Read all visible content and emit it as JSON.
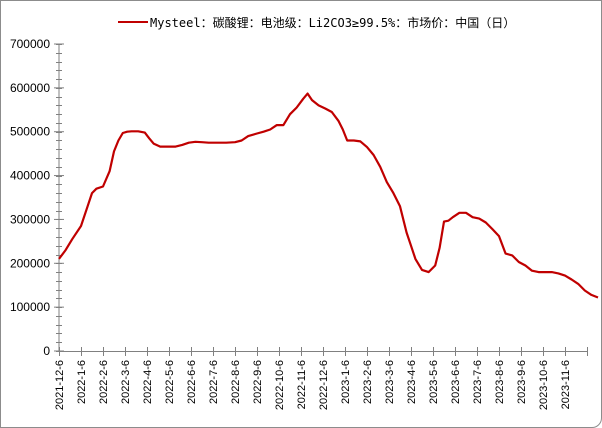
{
  "legend": {
    "label": "Mysteel：碳酸锂：电池级：Li2CO3≥99.5%：市场价：中国（日）",
    "color": "#c00000"
  },
  "chart_data": {
    "type": "line",
    "title": "",
    "xlabel": "",
    "ylabel": "",
    "ylim": [
      0,
      700000
    ],
    "yticks": [
      0,
      100000,
      200000,
      300000,
      400000,
      500000,
      600000,
      700000
    ],
    "ytick_labels": [
      "0",
      "100000",
      "200000",
      "300000",
      "400000",
      "500000",
      "600000",
      "700000"
    ],
    "xtick_labels": [
      "2021-12-6",
      "2022-1-6",
      "2022-2-6",
      "2022-3-6",
      "2022-4-6",
      "2022-5-6",
      "2022-6-6",
      "2022-7-6",
      "2022-8-6",
      "2022-9-6",
      "2022-10-6",
      "2022-11-6",
      "2022-12-6",
      "2023-1-6",
      "2023-2-6",
      "2023-3-6",
      "2023-4-6",
      "2023-5-6",
      "2023-6-6",
      "2023-7-6",
      "2023-8-6",
      "2023-9-6",
      "2023-10-6",
      "2023-11-6"
    ],
    "grid": false,
    "legend_position": "top",
    "series": [
      {
        "name": "Mysteel：碳酸锂：电池级：Li2CO3≥99.5%：市场价：中国（日）",
        "color": "#c00000",
        "x_month_offset": [
          0,
          0.3,
          0.6,
          1.0,
          1.3,
          1.5,
          1.7,
          2.0,
          2.3,
          2.5,
          2.7,
          2.9,
          3.1,
          3.3,
          3.6,
          3.9,
          4.1,
          4.3,
          4.6,
          5.0,
          5.3,
          5.6,
          5.9,
          6.2,
          6.5,
          6.8,
          7.2,
          7.6,
          8.0,
          8.3,
          8.6,
          9.0,
          9.3,
          9.6,
          9.9,
          10.2,
          10.5,
          10.8,
          11.1,
          11.3,
          11.5,
          11.8,
          12.1,
          12.4,
          12.7,
          12.9,
          13.1,
          13.4,
          13.7,
          14.0,
          14.3,
          14.6,
          14.9,
          15.2,
          15.5,
          15.8,
          16.0,
          16.2,
          16.5,
          16.8,
          17.1,
          17.3,
          17.5,
          17.7,
          17.9,
          18.2,
          18.5,
          18.8,
          19.1,
          19.4,
          19.7,
          20.0,
          20.3,
          20.6,
          20.9,
          21.2,
          21.5,
          21.8,
          22.1,
          22.4,
          22.7,
          23.0,
          23.3,
          23.6,
          23.9,
          24.2,
          24.5
        ],
        "values": [
          210000,
          230000,
          255000,
          285000,
          330000,
          360000,
          370000,
          375000,
          410000,
          455000,
          480000,
          497000,
          500000,
          501000,
          501000,
          498000,
          485000,
          473000,
          466000,
          466000,
          466000,
          470000,
          475000,
          477000,
          476000,
          475000,
          475000,
          475000,
          476000,
          480000,
          490000,
          496000,
          500000,
          505000,
          515000,
          515000,
          540000,
          555000,
          575000,
          587000,
          572000,
          560000,
          553000,
          545000,
          525000,
          505000,
          480000,
          480000,
          478000,
          465000,
          447000,
          420000,
          385000,
          360000,
          330000,
          270000,
          240000,
          210000,
          185000,
          180000,
          195000,
          235000,
          295000,
          297000,
          305000,
          315000,
          315000,
          305000,
          302000,
          293000,
          278000,
          262000,
          222000,
          218000,
          203000,
          195000,
          183000,
          180000,
          180000,
          180000,
          177000,
          172000,
          163000,
          153000,
          138000,
          128000,
          122000
        ]
      }
    ]
  }
}
